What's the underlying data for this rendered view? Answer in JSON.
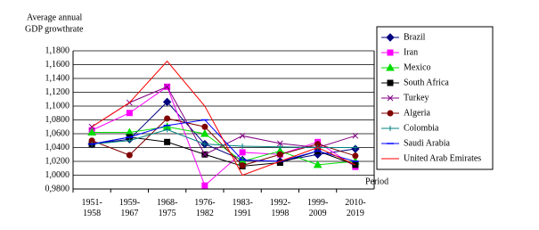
{
  "chart_data": {
    "type": "line",
    "y_label": [
      "Average annual",
      "GDP growthrate"
    ],
    "x_label": "Period",
    "categories": [
      "1951-1958",
      "1959-1967",
      "1968-1975",
      "1976-1982",
      "1983-1991",
      "1992-1998",
      "1999-2009",
      "2010-2019"
    ],
    "ylim": [
      0.98,
      1.18
    ],
    "yticks": [
      {
        "value": 0.98,
        "label": "0,9800"
      },
      {
        "value": 1.0,
        "label": "1,0000"
      },
      {
        "value": 1.02,
        "label": "1,0200"
      },
      {
        "value": 1.04,
        "label": "1,0400"
      },
      {
        "value": 1.06,
        "label": "1,0600"
      },
      {
        "value": 1.08,
        "label": "1,0800"
      },
      {
        "value": 1.1,
        "label": "1,1000"
      },
      {
        "value": 1.12,
        "label": "1,1200"
      },
      {
        "value": 1.14,
        "label": "1,1400"
      },
      {
        "value": 1.16,
        "label": "1,1600"
      },
      {
        "value": 1.18,
        "label": "1,1800"
      }
    ],
    "grid": true,
    "legend": "right",
    "series": [
      {
        "name": "Brazil",
        "color": "#000080",
        "marker": "diamond",
        "values": [
          1.045,
          1.052,
          1.106,
          1.045,
          1.022,
          1.02,
          1.03,
          1.038
        ]
      },
      {
        "name": "Iran",
        "color": "#ff00ff",
        "marker": "square",
        "values": [
          1.065,
          1.09,
          1.128,
          0.985,
          1.033,
          1.03,
          1.048,
          1.012
        ]
      },
      {
        "name": "Mexico",
        "color": "#00dd00",
        "marker": "triangle",
        "values": [
          1.062,
          1.062,
          1.07,
          1.06,
          1.02,
          1.035,
          1.015,
          1.02
        ]
      },
      {
        "name": "South Africa",
        "color": "#000000",
        "marker": "square",
        "values": [
          1.045,
          1.055,
          1.048,
          1.03,
          1.013,
          1.018,
          1.035,
          1.015
        ]
      },
      {
        "name": "Turkey",
        "color": "#800080",
        "marker": "x",
        "values": [
          1.07,
          1.105,
          1.128,
          1.03,
          1.057,
          1.046,
          1.04,
          1.057
        ]
      },
      {
        "name": "Algeria",
        "color": "#800000",
        "marker": "circle",
        "values": [
          1.05,
          1.029,
          1.082,
          1.07,
          1.014,
          1.03,
          1.045,
          1.028
        ]
      },
      {
        "name": "Colombia",
        "color": "#008080",
        "marker": "plus",
        "values": [
          1.045,
          1.05,
          1.066,
          1.045,
          1.042,
          1.041,
          1.04,
          1.04
        ]
      },
      {
        "name": "Saudi Arabia",
        "color": "#0000ff",
        "marker": "dash",
        "values": [
          1.045,
          1.055,
          1.072,
          1.08,
          1.022,
          1.02,
          1.035,
          1.02
        ]
      },
      {
        "name": "United Arab Emirates",
        "color": "#ff0000",
        "marker": "none",
        "values": [
          1.07,
          1.105,
          1.165,
          1.1,
          1.0,
          1.02,
          1.04,
          1.015
        ]
      }
    ]
  }
}
